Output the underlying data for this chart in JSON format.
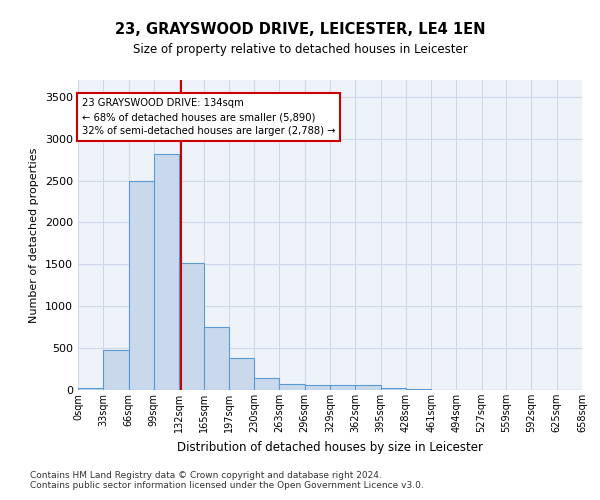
{
  "title": "23, GRAYSWOOD DRIVE, LEICESTER, LE4 1EN",
  "subtitle": "Size of property relative to detached houses in Leicester",
  "xlabel": "Distribution of detached houses by size in Leicester",
  "ylabel": "Number of detached properties",
  "bin_edges": [
    0,
    33,
    66,
    99,
    132,
    165,
    197,
    230,
    263,
    296,
    329,
    362,
    395,
    428,
    461,
    494,
    527,
    559,
    592,
    625,
    658
  ],
  "bin_labels": [
    "0sqm",
    "33sqm",
    "66sqm",
    "99sqm",
    "132sqm",
    "165sqm",
    "197sqm",
    "230sqm",
    "263sqm",
    "296sqm",
    "329sqm",
    "362sqm",
    "395sqm",
    "428sqm",
    "461sqm",
    "494sqm",
    "527sqm",
    "559sqm",
    "592sqm",
    "625sqm",
    "658sqm"
  ],
  "bar_heights": [
    20,
    480,
    2500,
    2820,
    1520,
    750,
    380,
    145,
    75,
    55,
    55,
    55,
    20,
    10,
    0,
    0,
    0,
    0,
    0,
    0
  ],
  "bar_color": "#c9d9eb",
  "bar_edge_color": "#5b9bd5",
  "grid_color": "#d0d8e8",
  "background_color": "#eef2f9",
  "vline_x": 134,
  "vline_color": "#cc0000",
  "annotation_text": "23 GRAYSWOOD DRIVE: 134sqm\n← 68% of detached houses are smaller (5,890)\n32% of semi-detached houses are larger (2,788) →",
  "annotation_box_color": "#cc0000",
  "ylim": [
    0,
    3700
  ],
  "yticks": [
    0,
    500,
    1000,
    1500,
    2000,
    2500,
    3000,
    3500
  ],
  "footnote1": "Contains HM Land Registry data © Crown copyright and database right 2024.",
  "footnote2": "Contains public sector information licensed under the Open Government Licence v3.0."
}
